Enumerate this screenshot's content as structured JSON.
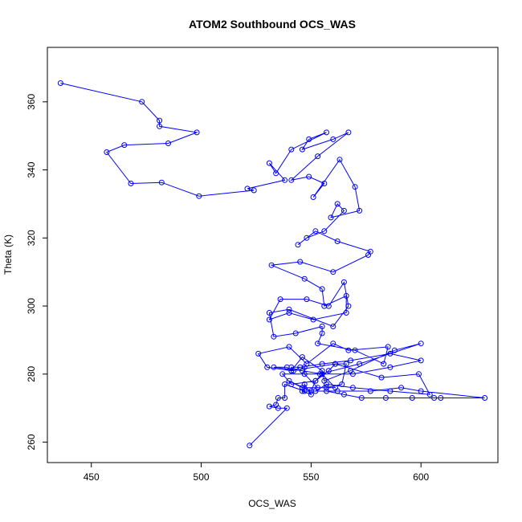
{
  "chart_data": {
    "type": "scatter",
    "title": "ATOM2 Southbound OCS_WAS",
    "xlabel": "OCS_WAS",
    "ylabel": "Theta (K)",
    "xlim": [
      430,
      635
    ],
    "ylim": [
      254,
      376
    ],
    "x_ticks": [
      450,
      500,
      550,
      600
    ],
    "y_ticks": [
      260,
      280,
      300,
      320,
      340,
      360
    ],
    "connected": true,
    "grid": false,
    "color": "#0000ff",
    "series": [
      {
        "x": [
          436,
          473,
          481,
          481,
          498,
          485,
          465,
          457,
          468,
          482,
          499,
          524,
          521,
          538,
          531,
          534,
          541,
          557,
          549,
          546,
          560,
          567,
          553,
          541,
          549,
          556,
          551,
          563,
          570,
          572,
          559,
          562,
          565,
          556,
          548,
          544,
          552,
          562,
          577,
          576,
          560,
          545,
          532,
          547,
          555,
          556,
          566,
          566,
          551,
          540,
          531,
          536,
          548,
          558,
          565,
          567,
          560,
          540,
          531,
          533,
          543,
          555,
          555,
          553,
          570,
          583,
          585,
          567,
          560,
          548,
          540,
          526,
          530,
          541,
          546,
          555,
          556,
          568,
          588,
          600,
          572,
          554,
          537,
          541,
          552,
          558,
          561,
          566,
          564,
          557,
          546,
          540,
          550,
          552,
          555,
          561,
          553,
          547,
          547,
          541,
          542,
          545,
          555,
          568,
          586,
          600,
          586,
          569,
          555,
          546,
          533,
          539,
          541,
          561,
          582,
          599,
          604,
          586,
          569,
          557,
          552,
          562,
          577,
          591,
          600,
          629,
          606,
          609,
          596,
          584,
          573,
          565,
          557,
          546,
          550,
          547,
          547,
          538,
          538,
          535,
          534,
          531,
          535,
          539,
          522
        ],
        "y": [
          365.5,
          360,
          354.5,
          352.8,
          351,
          347.8,
          347.3,
          345.2,
          336,
          336.3,
          332.3,
          334,
          334.5,
          337,
          342,
          339,
          346,
          351,
          349,
          346,
          349,
          351,
          344,
          337,
          338,
          336,
          332,
          343,
          335,
          328,
          326,
          330,
          328,
          322,
          320,
          318,
          322,
          319,
          316,
          315,
          310,
          313,
          312,
          308,
          305,
          300,
          303,
          298,
          296,
          298,
          296,
          302,
          302,
          300,
          307,
          300,
          294,
          299,
          298,
          291,
          292,
          294,
          292,
          289,
          287,
          283,
          288,
          287,
          289,
          283,
          288,
          286,
          282,
          281,
          285,
          281,
          278,
          281,
          287,
          289,
          283,
          280,
          280,
          277,
          278,
          281,
          283,
          283,
          277,
          276,
          276,
          278,
          275,
          278,
          280,
          276,
          276,
          280,
          282,
          282,
          281,
          282,
          283,
          284,
          286,
          284,
          282,
          280,
          280,
          281,
          282,
          282,
          281,
          283,
          279,
          280,
          274,
          275,
          276,
          277,
          275,
          275,
          275,
          276,
          275,
          273,
          273,
          273,
          273,
          273,
          273,
          274,
          275,
          275,
          274,
          277,
          275,
          277,
          273,
          273,
          271,
          270.5,
          270,
          270,
          259
        ]
      }
    ]
  }
}
